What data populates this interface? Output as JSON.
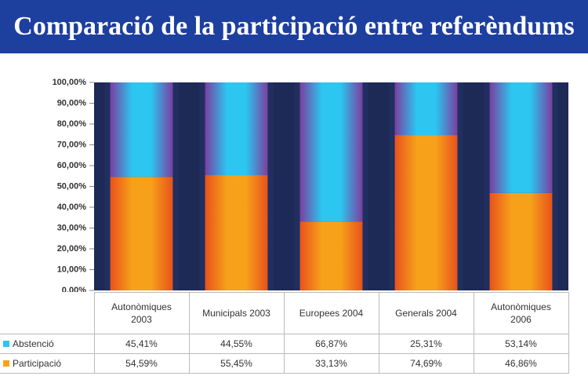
{
  "chart_data": {
    "type": "stacked_bar",
    "title": "Comparació de la participació entre referèndums",
    "categories": [
      "Autonòmiques 2003",
      "Municipals 2003",
      "Europees 2004",
      "Generals 2004",
      "Autonòmiques 2006"
    ],
    "series": [
      {
        "name": "Abstenció",
        "color": "#2cc6f0",
        "values": [
          45.41,
          44.55,
          66.87,
          25.31,
          53.14
        ],
        "value_labels": [
          "45,41%",
          "44,55%",
          "66,87%",
          "25,31%",
          "53,14%"
        ]
      },
      {
        "name": "Participació",
        "color": "#f7a11a",
        "values": [
          54.59,
          55.45,
          33.13,
          74.69,
          46.86
        ],
        "value_labels": [
          "54,59%",
          "55,45%",
          "33,13%",
          "74,69%",
          "46,86%"
        ]
      }
    ],
    "ylim": [
      0,
      100
    ],
    "yticks": [
      {
        "value": 0,
        "label": "0,00%"
      },
      {
        "value": 10,
        "label": "10,00%"
      },
      {
        "value": 20,
        "label": "20,00%"
      },
      {
        "value": 30,
        "label": "30,00%"
      },
      {
        "value": 40,
        "label": "40,00%"
      },
      {
        "value": 50,
        "label": "50,00%"
      },
      {
        "value": 60,
        "label": "60,00%"
      },
      {
        "value": 70,
        "label": "70,00%"
      },
      {
        "value": 80,
        "label": "80,00%"
      },
      {
        "value": 90,
        "label": "90,00%"
      },
      {
        "value": 100,
        "label": "100,00%"
      }
    ]
  }
}
